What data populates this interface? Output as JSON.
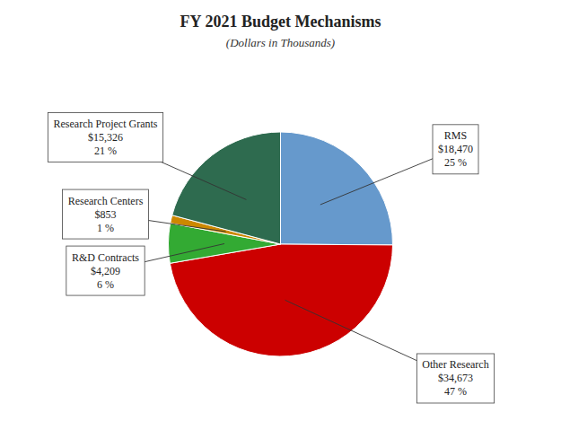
{
  "chart_data": {
    "type": "pie",
    "title": "FY 2021 Budget Mechanisms",
    "subtitle": "(Dollars in Thousands)",
    "categories": [
      "RMS",
      "Other Research",
      "R&D Contracts",
      "Research Centers",
      "Research Project Grants"
    ],
    "values": [
      18470,
      34673,
      4209,
      853,
      15326
    ],
    "value_labels": [
      "$18,470",
      "$34,673",
      "$4,209",
      "$853",
      "$15,326"
    ],
    "percents": [
      25,
      47,
      6,
      1,
      21
    ],
    "percent_labels": [
      "25 %",
      "47 %",
      "6 %",
      "1 %",
      "21 %"
    ],
    "colors": [
      "#6699CC",
      "#CC0000",
      "#33AA33",
      "#CC8800",
      "#2E6B4F"
    ]
  }
}
